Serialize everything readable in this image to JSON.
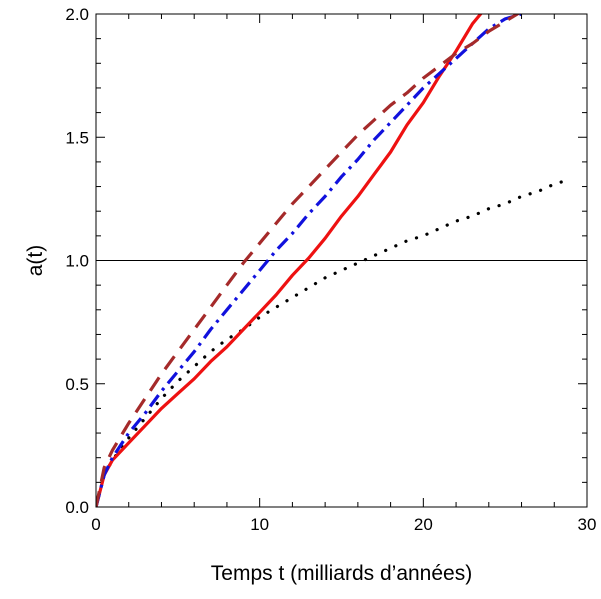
{
  "chart_data": {
    "type": "line",
    "title": "",
    "xlabel": "Temps t (milliards d’années)",
    "ylabel": "a(t)",
    "xlim": [
      0,
      30
    ],
    "ylim": [
      0,
      2
    ],
    "x_ticks": [
      0,
      10,
      20,
      30
    ],
    "x_tick_labels": [
      "0",
      "10",
      "20",
      "30"
    ],
    "y_ticks": [
      0,
      0.5,
      1,
      1.5,
      2
    ],
    "y_tick_labels": [
      "0.0",
      "0.5",
      "1.0",
      "1.5",
      "2.0"
    ],
    "grid": false,
    "legend": "none",
    "reference_line": {
      "y": 1.0,
      "color": "#000000"
    },
    "series": [
      {
        "style": "dotted",
        "color": "#000000",
        "x": [
          0,
          0.5,
          1,
          2,
          3,
          4,
          5,
          6,
          7,
          8,
          9,
          10,
          11,
          12,
          13,
          14,
          15,
          16,
          17,
          18,
          19,
          20,
          21,
          22,
          23,
          24,
          25,
          26,
          27,
          28,
          29
        ],
        "y": [
          0,
          0.13,
          0.19,
          0.28,
          0.36,
          0.44,
          0.51,
          0.57,
          0.63,
          0.68,
          0.72,
          0.77,
          0.81,
          0.85,
          0.89,
          0.93,
          0.96,
          0.99,
          1.02,
          1.05,
          1.08,
          1.1,
          1.13,
          1.16,
          1.18,
          1.21,
          1.23,
          1.26,
          1.28,
          1.31,
          1.33
        ]
      },
      {
        "style": "solid",
        "color": "#ee1111",
        "x": [
          0,
          0.5,
          1,
          2,
          3,
          4,
          5,
          6,
          7,
          8,
          9,
          10,
          11,
          12,
          13,
          14,
          15,
          16,
          17,
          18,
          19,
          20,
          21,
          22,
          23,
          23.5
        ],
        "y": [
          0,
          0.13,
          0.19,
          0.26,
          0.33,
          0.4,
          0.46,
          0.52,
          0.59,
          0.65,
          0.72,
          0.79,
          0.86,
          0.94,
          1.01,
          1.09,
          1.18,
          1.26,
          1.35,
          1.44,
          1.55,
          1.64,
          1.75,
          1.85,
          1.96,
          2.0
        ]
      },
      {
        "style": "dash-dot",
        "color": "#1111dd",
        "x": [
          0,
          0.5,
          1,
          2,
          3,
          4,
          5,
          6,
          7,
          8,
          9,
          10,
          11,
          12,
          13,
          14,
          15,
          16,
          17,
          18,
          19,
          20,
          21,
          22,
          23,
          24,
          25,
          26
        ],
        "y": [
          0,
          0.13,
          0.2,
          0.3,
          0.38,
          0.47,
          0.55,
          0.63,
          0.72,
          0.8,
          0.88,
          0.96,
          1.04,
          1.11,
          1.19,
          1.26,
          1.34,
          1.41,
          1.49,
          1.56,
          1.63,
          1.7,
          1.76,
          1.82,
          1.88,
          1.94,
          1.98,
          2.0
        ]
      },
      {
        "style": "dashed",
        "color": "#a52a2a",
        "x": [
          0,
          0.5,
          1,
          2,
          3,
          4,
          5,
          6,
          7,
          8,
          9,
          10,
          11,
          12,
          13,
          14,
          15,
          16,
          17,
          18,
          19,
          20,
          21,
          22,
          23,
          24,
          25,
          26
        ],
        "y": [
          0,
          0.16,
          0.23,
          0.34,
          0.44,
          0.54,
          0.63,
          0.72,
          0.81,
          0.9,
          0.99,
          1.07,
          1.15,
          1.23,
          1.3,
          1.37,
          1.44,
          1.51,
          1.57,
          1.63,
          1.68,
          1.74,
          1.79,
          1.84,
          1.88,
          1.93,
          1.97,
          2.01
        ]
      }
    ]
  }
}
